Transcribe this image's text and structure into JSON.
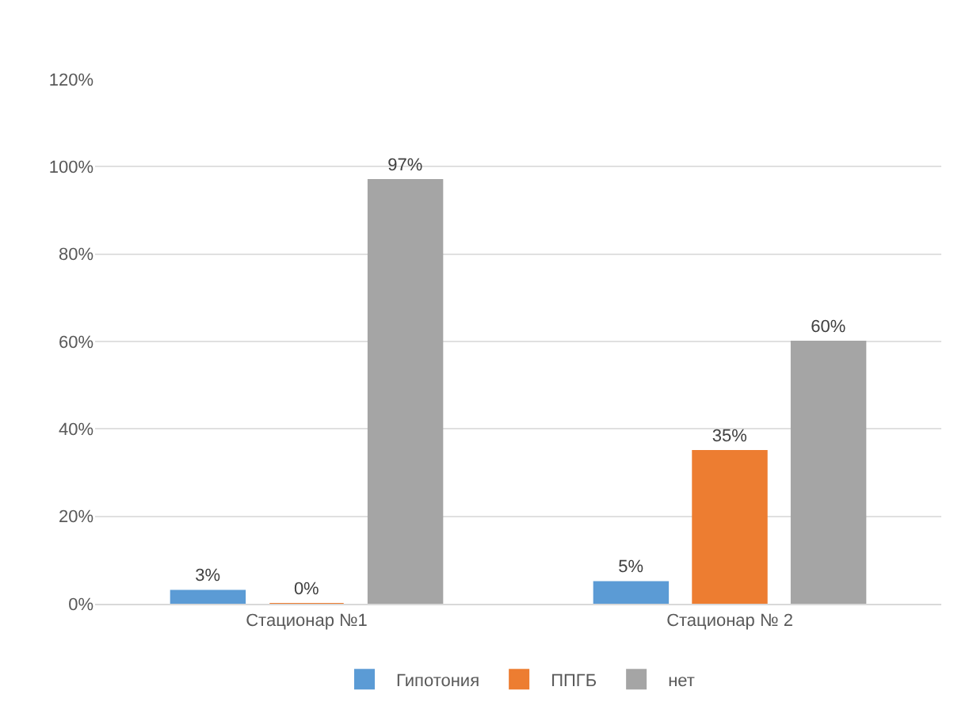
{
  "chart_data": {
    "type": "bar",
    "categories": [
      "Стационар №1",
      "Стационар № 2"
    ],
    "series": [
      {
        "name": "Гипотония",
        "color": "#5b9bd5",
        "values": [
          3,
          5
        ],
        "value_labels": [
          "3%",
          "5%"
        ]
      },
      {
        "name": "ППГБ",
        "color": "#ed7d31",
        "values": [
          0,
          35
        ],
        "value_labels": [
          "0%",
          "35%"
        ]
      },
      {
        "name": "нет",
        "color": "#a5a5a5",
        "values": [
          97,
          60
        ],
        "value_labels": [
          "97%",
          "60%"
        ]
      }
    ],
    "ylim": [
      0,
      120
    ],
    "yticks": [
      {
        "value": 0,
        "label": "0%"
      },
      {
        "value": 20,
        "label": "20%"
      },
      {
        "value": 40,
        "label": "40%"
      },
      {
        "value": 60,
        "label": "60%"
      },
      {
        "value": 80,
        "label": "80%"
      },
      {
        "value": 100,
        "label": "100%"
      },
      {
        "value": 120,
        "label": "120%"
      }
    ],
    "grid": "y",
    "legend": "bottom"
  }
}
